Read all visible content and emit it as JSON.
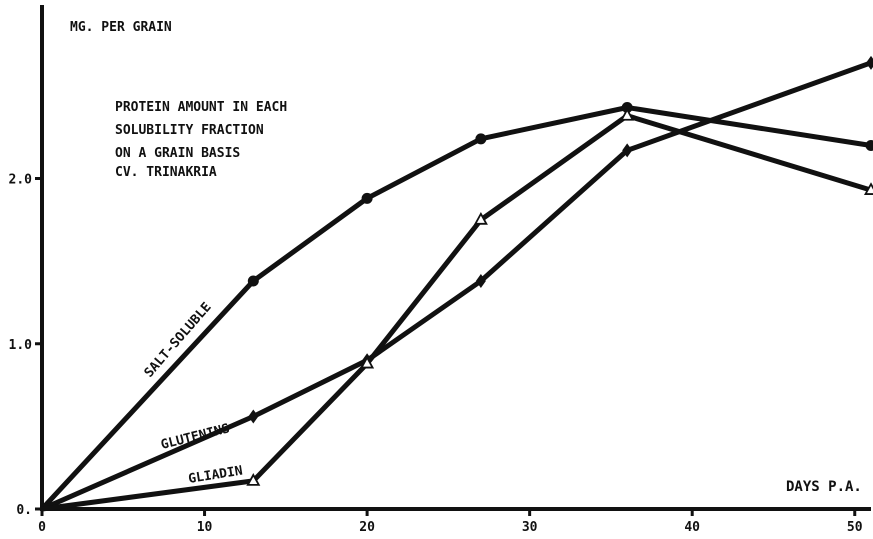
{
  "chart_data": {
    "type": "line",
    "title": "PROTEIN AMOUNT IN EACH SOLUBILITY FRACTION ON A GRAIN BASIS CV. TRINAKRIA",
    "title_lines": [
      "PROTEIN AMOUNT IN EACH",
      "SOLUBILITY FRACTION",
      "ON A GRAIN BASIS",
      "CV. TRINAKRIA"
    ],
    "xlabel": "DAYS P.A.",
    "ylabel": "MG. PER GRAIN",
    "xlim": [
      0,
      51
    ],
    "ylim": [
      0,
      3.05
    ],
    "x_ticks": [
      0,
      10,
      20,
      30,
      40,
      50
    ],
    "x_tick_labels": [
      "0",
      "10",
      "20",
      "30",
      "40",
      "50"
    ],
    "y_ticks": [
      0,
      1,
      2
    ],
    "y_tick_labels": [
      "0.",
      "1.0",
      "2.0"
    ],
    "grid": false,
    "legend": "none",
    "series": [
      {
        "name": "SALT-SOLUBLE",
        "marker": "circle",
        "points": [
          [
            0,
            0
          ],
          [
            13,
            1.38
          ],
          [
            20,
            1.88
          ],
          [
            27,
            2.24
          ],
          [
            36,
            2.43
          ],
          [
            51,
            2.2
          ]
        ]
      },
      {
        "name": "GLUTENINS",
        "marker": "diamond",
        "points": [
          [
            0,
            0
          ],
          [
            13,
            0.56
          ],
          [
            20,
            0.9
          ],
          [
            27,
            1.38
          ],
          [
            36,
            2.17
          ],
          [
            51,
            2.7
          ]
        ]
      },
      {
        "name": "GLIADIN",
        "marker": "triangle",
        "points": [
          [
            0,
            0
          ],
          [
            13,
            0.17
          ],
          [
            20,
            0.88
          ],
          [
            27,
            1.75
          ],
          [
            36,
            2.38
          ],
          [
            51,
            1.93
          ]
        ]
      }
    ]
  }
}
